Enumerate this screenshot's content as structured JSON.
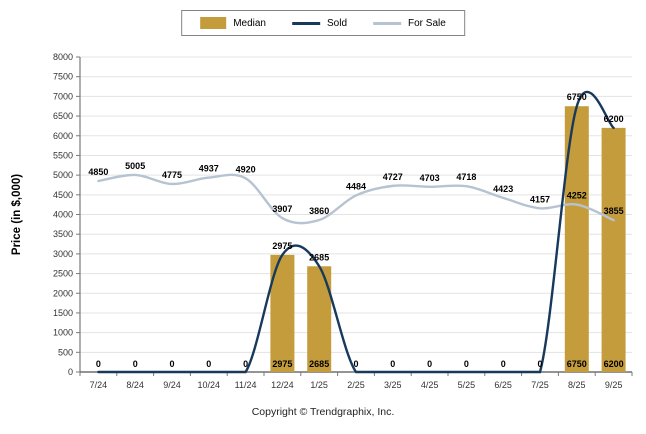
{
  "legend": {
    "items": [
      {
        "label": "Median",
        "type": "bar",
        "color": "#C49C3C"
      },
      {
        "label": "Sold",
        "type": "line",
        "color": "#17395C"
      },
      {
        "label": "For Sale",
        "type": "line",
        "color": "#B6C3D1"
      }
    ]
  },
  "chart_data": {
    "type": "line",
    "title": "",
    "categories": [
      "7/24",
      "8/24",
      "9/24",
      "10/24",
      "11/24",
      "12/24",
      "1/25",
      "2/25",
      "3/25",
      "4/25",
      "5/25",
      "6/25",
      "7/25",
      "8/25",
      "9/25"
    ],
    "series": [
      {
        "name": "Median",
        "type": "bar",
        "color": "#C49C3C",
        "values": [
          0,
          0,
          0,
          0,
          0,
          2975,
          2685,
          0,
          0,
          0,
          0,
          0,
          0,
          6750,
          6200
        ]
      },
      {
        "name": "Sold",
        "type": "line",
        "color": "#17395C",
        "values": [
          0,
          0,
          0,
          0,
          0,
          2975,
          2685,
          0,
          0,
          0,
          0,
          0,
          0,
          6750,
          6200
        ]
      },
      {
        "name": "For Sale",
        "type": "line",
        "color": "#B6C3D1",
        "values": [
          4850,
          5005,
          4775,
          4937,
          4920,
          3907,
          3860,
          4484,
          4727,
          4703,
          4718,
          4423,
          4157,
          4252,
          3855
        ]
      }
    ],
    "xlabel": "",
    "ylabel": "Price (in $,000)",
    "ylim": [
      0,
      8000
    ],
    "ytick_step": 500,
    "grid": true,
    "legend_position": "top"
  },
  "colors": {
    "gridline": "#e3e3e3",
    "axis": "#7a7a7a",
    "tick_label": "#333333",
    "data_label": "#000000"
  },
  "footer": {
    "copyright": "Copyright © Trendgraphix, Inc."
  }
}
